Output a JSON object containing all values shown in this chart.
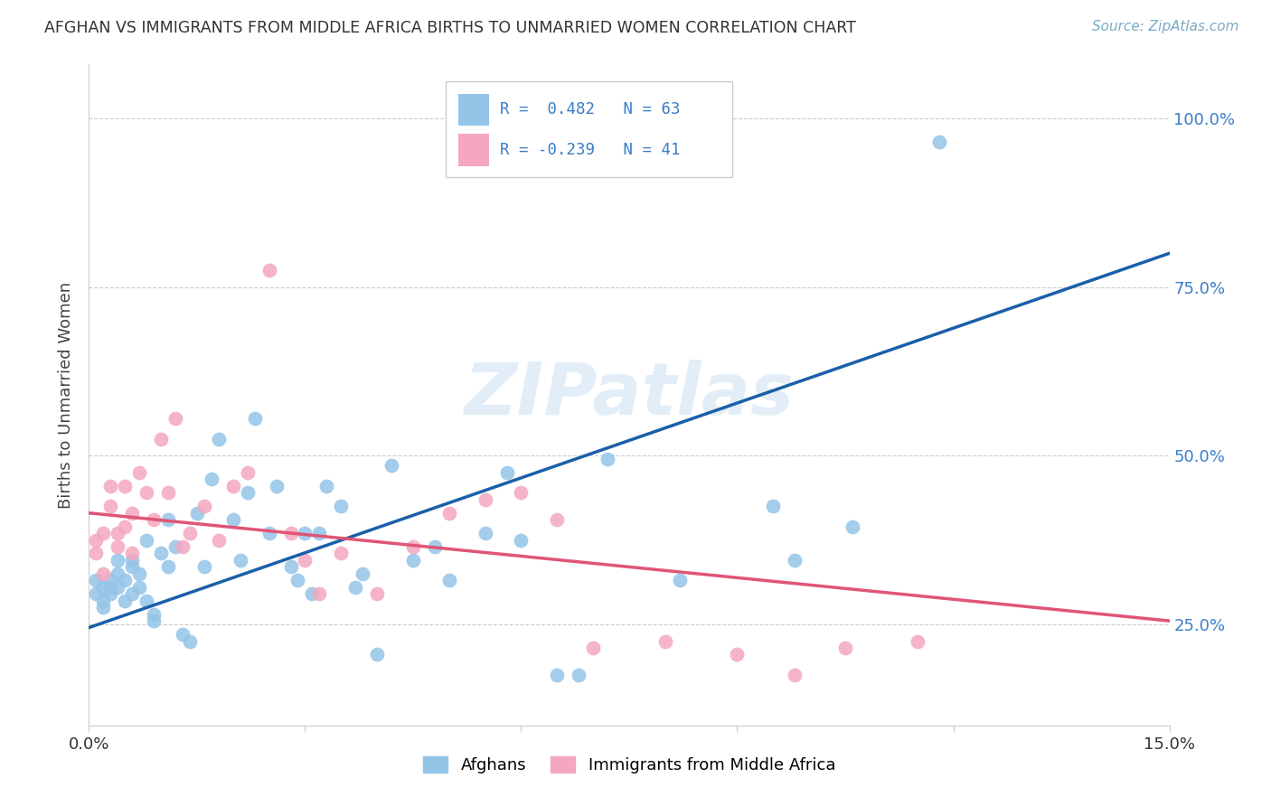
{
  "title": "AFGHAN VS IMMIGRANTS FROM MIDDLE AFRICA BIRTHS TO UNMARRIED WOMEN CORRELATION CHART",
  "source": "Source: ZipAtlas.com",
  "ylabel": "Births to Unmarried Women",
  "xlim": [
    0.0,
    0.15
  ],
  "ylim": [
    0.1,
    1.08
  ],
  "yticks": [
    0.25,
    0.5,
    0.75,
    1.0
  ],
  "ytick_labels": [
    "25.0%",
    "50.0%",
    "75.0%",
    "100.0%"
  ],
  "xticks": [
    0.0,
    0.03,
    0.06,
    0.09,
    0.12,
    0.15
  ],
  "xtick_labels": [
    "0.0%",
    "",
    "",
    "",
    "",
    "15.0%"
  ],
  "blue_scatter_color": "#94C4E8",
  "pink_scatter_color": "#F4A7BE",
  "blue_line_color": "#1A5FA8",
  "pink_line_color": "#E05575",
  "right_tick_color": "#3A7DC9",
  "watermark": "ZIPatlas",
  "legend_label1": "Afghans",
  "legend_label2": "Immigrants from Middle Africa",
  "background_color": "#FFFFFF",
  "grid_color": "#CCCCCC",
  "blue_line_x0": 0.0,
  "blue_line_y0": 0.245,
  "blue_line_x1": 0.15,
  "blue_line_y1": 0.8,
  "pink_line_x0": 0.0,
  "pink_line_y0": 0.415,
  "pink_line_x1": 0.15,
  "pink_line_y1": 0.255,
  "blue_x": [
    0.001,
    0.001,
    0.002,
    0.002,
    0.002,
    0.003,
    0.003,
    0.003,
    0.004,
    0.004,
    0.004,
    0.005,
    0.005,
    0.006,
    0.006,
    0.006,
    0.007,
    0.007,
    0.008,
    0.008,
    0.009,
    0.009,
    0.01,
    0.011,
    0.011,
    0.012,
    0.013,
    0.014,
    0.015,
    0.016,
    0.017,
    0.018,
    0.02,
    0.021,
    0.022,
    0.023,
    0.025,
    0.026,
    0.028,
    0.029,
    0.03,
    0.031,
    0.032,
    0.033,
    0.035,
    0.037,
    0.038,
    0.04,
    0.042,
    0.045,
    0.048,
    0.05,
    0.055,
    0.058,
    0.06,
    0.065,
    0.068,
    0.072,
    0.082,
    0.095,
    0.098,
    0.106,
    0.118
  ],
  "blue_y": [
    0.315,
    0.295,
    0.305,
    0.285,
    0.275,
    0.315,
    0.305,
    0.295,
    0.305,
    0.325,
    0.345,
    0.315,
    0.285,
    0.295,
    0.335,
    0.345,
    0.325,
    0.305,
    0.285,
    0.375,
    0.265,
    0.255,
    0.355,
    0.335,
    0.405,
    0.365,
    0.235,
    0.225,
    0.415,
    0.335,
    0.465,
    0.525,
    0.405,
    0.345,
    0.445,
    0.555,
    0.385,
    0.455,
    0.335,
    0.315,
    0.385,
    0.295,
    0.385,
    0.455,
    0.425,
    0.305,
    0.325,
    0.205,
    0.485,
    0.345,
    0.365,
    0.315,
    0.385,
    0.475,
    0.375,
    0.175,
    0.175,
    0.495,
    0.315,
    0.425,
    0.345,
    0.395,
    0.965
  ],
  "pink_x": [
    0.001,
    0.001,
    0.002,
    0.002,
    0.003,
    0.003,
    0.004,
    0.004,
    0.005,
    0.005,
    0.006,
    0.006,
    0.007,
    0.008,
    0.009,
    0.01,
    0.011,
    0.012,
    0.013,
    0.014,
    0.016,
    0.018,
    0.02,
    0.022,
    0.025,
    0.028,
    0.03,
    0.032,
    0.035,
    0.04,
    0.045,
    0.05,
    0.055,
    0.06,
    0.065,
    0.07,
    0.08,
    0.09,
    0.098,
    0.105,
    0.115
  ],
  "pink_y": [
    0.375,
    0.355,
    0.385,
    0.325,
    0.425,
    0.455,
    0.385,
    0.365,
    0.455,
    0.395,
    0.415,
    0.355,
    0.475,
    0.445,
    0.405,
    0.525,
    0.445,
    0.555,
    0.365,
    0.385,
    0.425,
    0.375,
    0.455,
    0.475,
    0.775,
    0.385,
    0.345,
    0.295,
    0.355,
    0.295,
    0.365,
    0.415,
    0.435,
    0.445,
    0.405,
    0.215,
    0.225,
    0.205,
    0.175,
    0.215,
    0.225
  ]
}
